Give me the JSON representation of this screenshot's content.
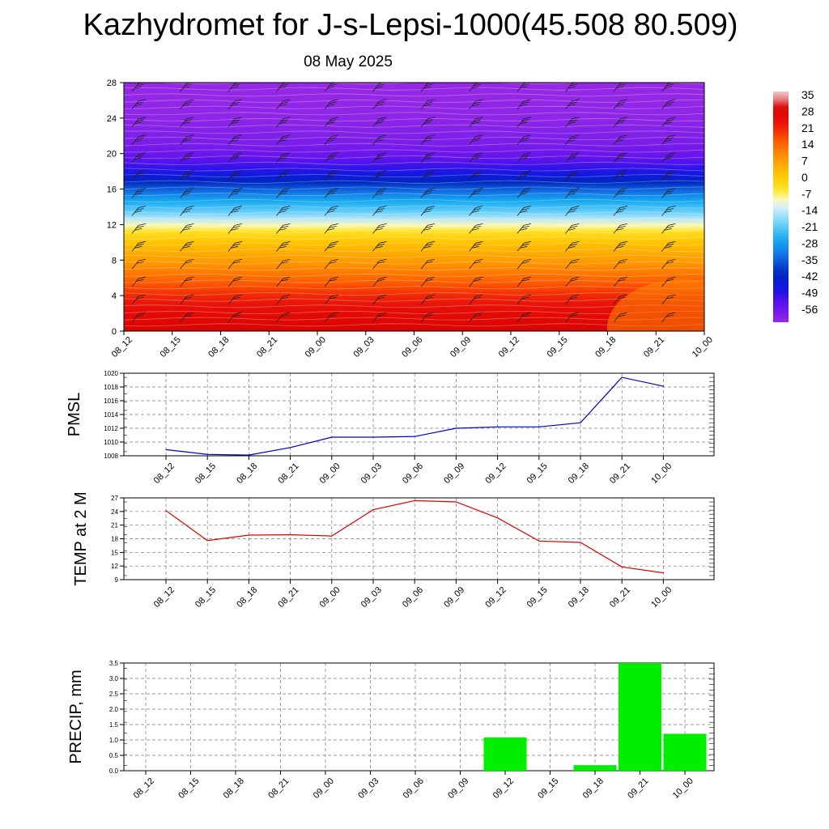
{
  "title": "Kazhydromet for J-s-Lepsi-1000(45.508 80.509)",
  "subtitle": "08 May 2025",
  "time_labels": [
    "08_12",
    "08_15",
    "08_18",
    "08_21",
    "09_00",
    "09_03",
    "09_06",
    "09_09",
    "09_12",
    "09_15",
    "09_18",
    "09_21",
    "10_00"
  ],
  "chart_data": [
    {
      "type": "heatmap",
      "name": "upper-air temperature cross-section with wind barbs",
      "ylim": [
        0,
        28
      ],
      "yticks": [
        0,
        4,
        8,
        12,
        16,
        20,
        24,
        28
      ],
      "colorbar": {
        "labels": [
          "35",
          "28",
          "21",
          "14",
          "7",
          "0",
          "-7",
          "-14",
          "-21",
          "-28",
          "-35",
          "-42",
          "-49",
          "-56"
        ],
        "range": [
          -63,
          35
        ]
      },
      "profile": [
        {
          "h": 0,
          "t": 27
        },
        {
          "h": 2,
          "t": 24
        },
        {
          "h": 4,
          "t": 19
        },
        {
          "h": 6,
          "t": 12
        },
        {
          "h": 8,
          "t": 6
        },
        {
          "h": 10,
          "t": 0
        },
        {
          "h": 11.5,
          "t": -7
        },
        {
          "h": 12.3,
          "t": -14
        },
        {
          "h": 13.5,
          "t": -22
        },
        {
          "h": 15,
          "t": -30
        },
        {
          "h": 16.5,
          "t": -40
        },
        {
          "h": 18,
          "t": -50
        },
        {
          "h": 19.5,
          "t": -56
        },
        {
          "h": 21,
          "t": -59
        },
        {
          "h": 24,
          "t": -62
        },
        {
          "h": 28,
          "t": -63
        }
      ]
    },
    {
      "type": "line",
      "ylabel": "PMSL",
      "ylim": [
        1008,
        1020
      ],
      "yticks": [
        1008,
        1010,
        1012,
        1014,
        1016,
        1018,
        1020
      ],
      "color": "#0000cc",
      "values": [
        1008.9,
        1008.2,
        1008.1,
        1009.2,
        1010.7,
        1010.7,
        1010.8,
        1012.0,
        1012.2,
        1012.2,
        1012.8,
        1019.4,
        1018.1
      ]
    },
    {
      "type": "line",
      "ylabel": "TEMP at 2 M",
      "ylim": [
        9,
        27
      ],
      "yticks": [
        9,
        12,
        15,
        18,
        21,
        24,
        27
      ],
      "color": "#dd0000",
      "values": [
        24.2,
        17.6,
        18.8,
        18.9,
        18.6,
        24.4,
        26.4,
        26.1,
        22.6,
        17.5,
        17.2,
        11.8,
        10.5
      ]
    },
    {
      "type": "bar",
      "ylabel": "PRECIP, mm",
      "ylim": [
        0,
        3.5
      ],
      "yticks": [
        "0.0",
        "0.5",
        "1.0",
        "1.5",
        "2.0",
        "2.5",
        "3.0",
        "3.5"
      ],
      "color": "#00ee00",
      "values": [
        0,
        0,
        0,
        0,
        0,
        0,
        0,
        0,
        1.08,
        0,
        0.18,
        3.5,
        1.2
      ]
    }
  ]
}
